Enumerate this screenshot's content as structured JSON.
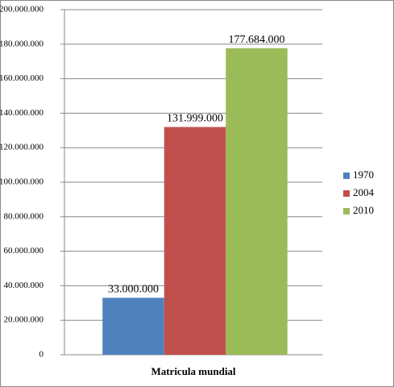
{
  "chart_data": {
    "type": "bar",
    "categories": [
      "Matricula mundial"
    ],
    "series": [
      {
        "name": "1970",
        "color": "#4f81bd",
        "values": [
          33000000
        ],
        "value_labels": [
          "33.000.000"
        ]
      },
      {
        "name": "2004",
        "color": "#c0504d",
        "values": [
          131999000
        ],
        "value_labels": [
          "131.999.000"
        ]
      },
      {
        "name": "2010",
        "color": "#9bbb59",
        "values": [
          177684000
        ],
        "value_labels": [
          "177.684.000"
        ]
      }
    ],
    "ylim": [
      0,
      200000000
    ],
    "yticks": [
      0,
      {
        "value": 20000000,
        "label": "20.000.000"
      },
      {
        "value": 40000000,
        "label": "40.000.000"
      },
      {
        "value": 60000000,
        "label": "60.000.000"
      },
      {
        "value": 80000000,
        "label": "80.000.000"
      },
      {
        "value": 100000000,
        "label": "100.000.000"
      },
      {
        "value": 120000000,
        "label": "120.000.000"
      },
      {
        "value": 140000000,
        "label": "140.000.000"
      },
      {
        "value": 160000000,
        "label": "160.000.000"
      },
      {
        "value": 180000000,
        "label": "180.000.000"
      },
      {
        "value": 200000000,
        "label": "200.000.000"
      }
    ],
    "grid": true,
    "legend": "right"
  }
}
